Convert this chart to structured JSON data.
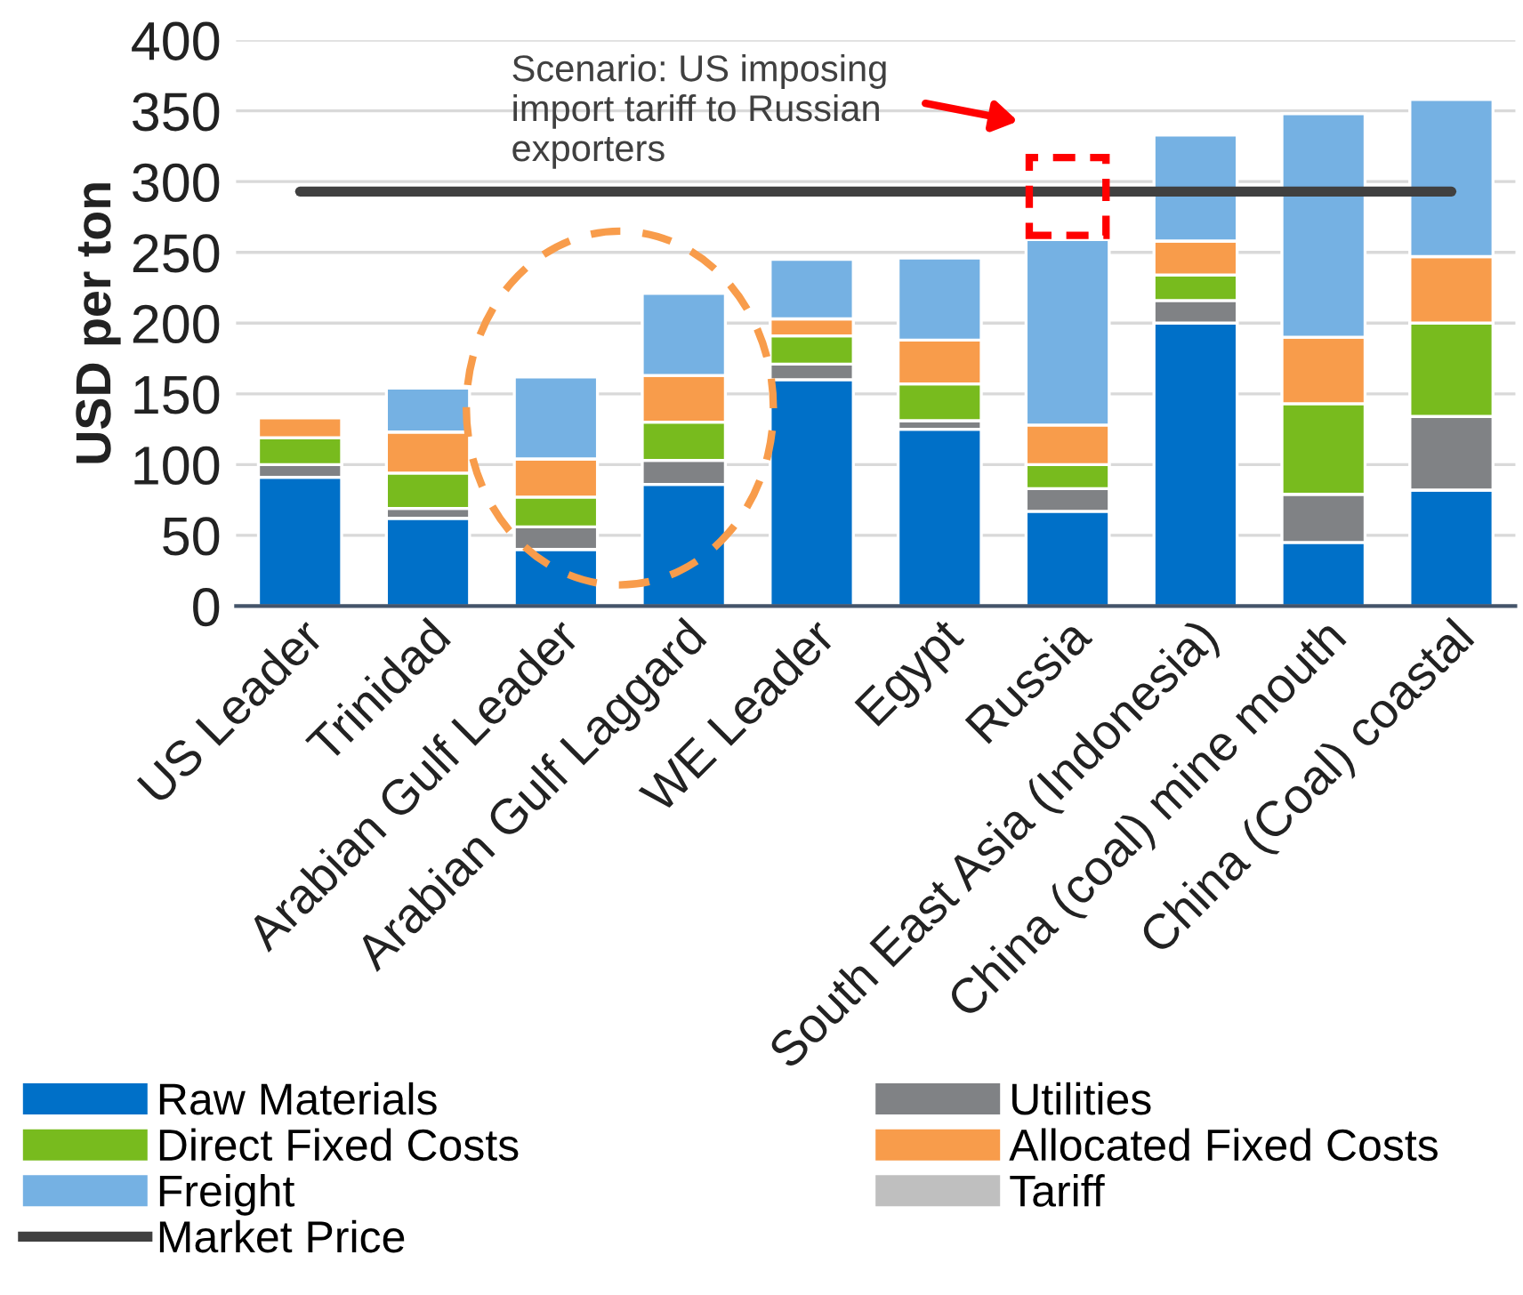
{
  "chart_data": {
    "type": "bar",
    "stacked": true,
    "ylabel": "USD per ton",
    "categories": [
      "US Leader",
      "Trinidad",
      "Arabian Gulf Leader",
      "Arabian Gulf Laggard",
      "WE Leader",
      "Egypt",
      "Russia",
      "South East Asia (Indonesia)",
      "China (coal) mine mouth",
      "China (Coal) coastal"
    ],
    "series": [
      {
        "name": "Raw Materials",
        "color": "#0070c8",
        "values": [
          91,
          62,
          40,
          86,
          160,
          125,
          67,
          200,
          45,
          82
        ]
      },
      {
        "name": "Utilities",
        "color": "#808285",
        "values": [
          9,
          7,
          16,
          17,
          11,
          6,
          16,
          16,
          34,
          52
        ]
      },
      {
        "name": "Direct Fixed Costs",
        "color": "#78bb1e",
        "values": [
          19,
          25,
          21,
          27,
          20,
          26,
          17,
          18,
          64,
          66
        ]
      },
      {
        "name": "Allocated Fixed Costs",
        "color": "#f89c4b",
        "values": [
          14,
          29,
          27,
          33,
          12,
          31,
          28,
          24,
          47,
          47
        ]
      },
      {
        "name": "Freight",
        "color": "#75b1e3",
        "values": [
          0,
          31,
          58,
          58,
          42,
          58,
          131,
          75,
          158,
          111
        ]
      },
      {
        "name": "Tariff",
        "color": "#bfbfbf",
        "values": [
          0,
          0,
          0,
          0,
          0,
          0,
          0,
          0,
          0,
          0
        ]
      },
      {
        "name": "Market Price",
        "type": "line",
        "color": "#404040",
        "values": [
          293,
          293,
          293,
          293,
          293,
          293,
          293,
          293,
          293,
          293
        ]
      }
    ],
    "ylim": [
      0,
      400
    ],
    "yticks": [
      0,
      50,
      100,
      150,
      200,
      250,
      300,
      350,
      400
    ],
    "grid": "y",
    "legend": "bottom",
    "annotations": [
      "Scenario: US imposing\nimport tariff to Russian\nexporters"
    ]
  }
}
